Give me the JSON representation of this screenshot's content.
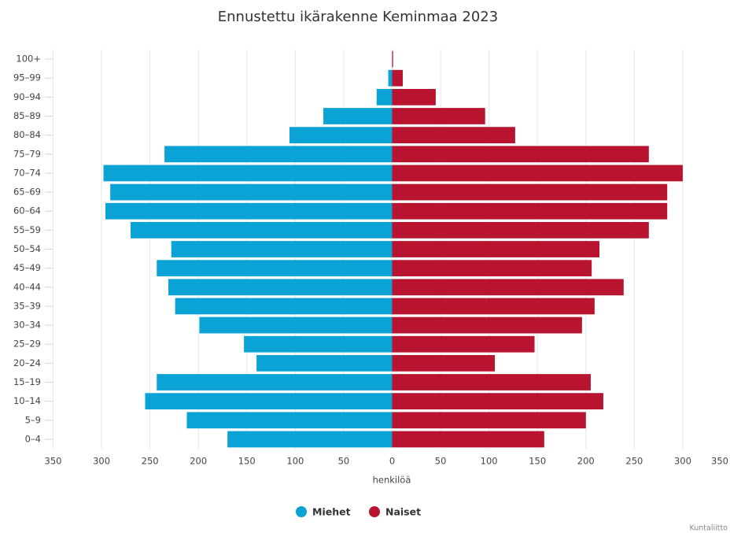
{
  "chart_data": {
    "type": "bar",
    "orientation": "horizontal",
    "title": "Ennustettu ikärakenne Keminmaa 2023",
    "x_label": "henkilöä",
    "credit": "Kuntaliitto",
    "categories": [
      "100+",
      "95–99",
      "90–94",
      "85–89",
      "80–84",
      "75–79",
      "70–74",
      "65–69",
      "60–64",
      "55–59",
      "50–54",
      "45–49",
      "40–44",
      "35–39",
      "30–34",
      "25–29",
      "20–24",
      "15–19",
      "10–14",
      "5–9",
      "0–4"
    ],
    "series": [
      {
        "name": "Miehet",
        "color": "#0ba3d6",
        "values": [
          0,
          -4,
          -16,
          -71,
          -106,
          -235,
          -298,
          -291,
          -296,
          -270,
          -228,
          -243,
          -231,
          -224,
          -199,
          -153,
          -140,
          -243,
          -255,
          -212,
          -170
        ]
      },
      {
        "name": "Naiset",
        "color": "#b8142f",
        "values": [
          1,
          11,
          45,
          96,
          127,
          265,
          300,
          284,
          284,
          265,
          214,
          206,
          239,
          209,
          196,
          147,
          106,
          205,
          218,
          200,
          157
        ]
      }
    ],
    "xlim": [
      -350,
      350
    ],
    "xticks": [
      {
        "value": -350,
        "label": "350"
      },
      {
        "value": -300,
        "label": "300"
      },
      {
        "value": -250,
        "label": "250"
      },
      {
        "value": -200,
        "label": "200"
      },
      {
        "value": -150,
        "label": "150"
      },
      {
        "value": -100,
        "label": "100"
      },
      {
        "value": -50,
        "label": "50"
      },
      0,
      50,
      100,
      150,
      200,
      250,
      300,
      350
    ],
    "grid": true,
    "legend": "bottom"
  }
}
